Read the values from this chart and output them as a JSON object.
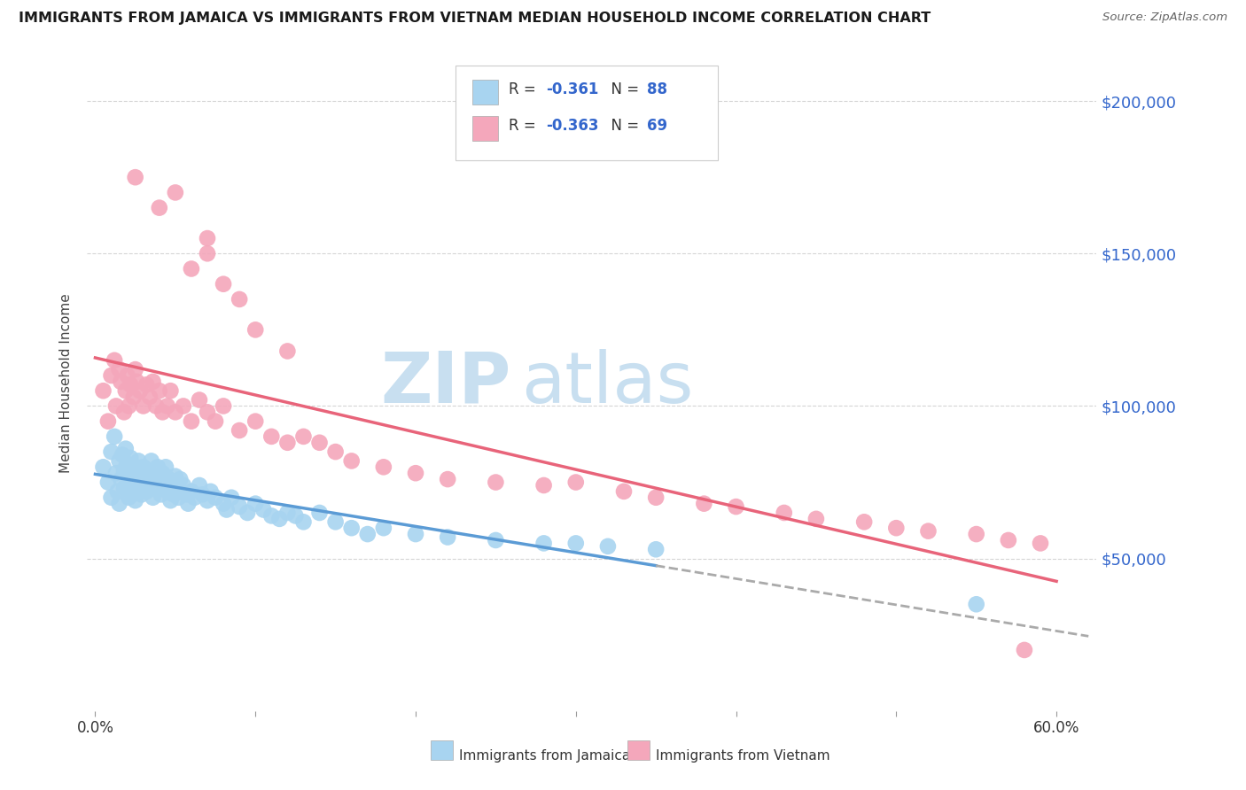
{
  "title": "IMMIGRANTS FROM JAMAICA VS IMMIGRANTS FROM VIETNAM MEDIAN HOUSEHOLD INCOME CORRELATION CHART",
  "source": "Source: ZipAtlas.com",
  "ylabel": "Median Household Income",
  "ytick_labels": [
    "$50,000",
    "$100,000",
    "$150,000",
    "$200,000"
  ],
  "ytick_vals": [
    50000,
    100000,
    150000,
    200000
  ],
  "ylim": [
    0,
    215000
  ],
  "xlim": [
    -0.005,
    0.625
  ],
  "jamaica_color": "#a8d4f0",
  "vietnam_color": "#f4a7bb",
  "jamaica_line_color": "#5b9bd5",
  "vietnam_line_color": "#e8647a",
  "grid_color": "#d5d5d5",
  "watermark_zip_color": "#c8dff0",
  "watermark_atlas_color": "#c8dff0",
  "legend_border_color": "#cccccc",
  "legend_text_color": "#3366cc",
  "jamaica_scatter_x": [
    0.005,
    0.008,
    0.01,
    0.01,
    0.012,
    0.013,
    0.014,
    0.015,
    0.015,
    0.016,
    0.017,
    0.018,
    0.018,
    0.019,
    0.02,
    0.02,
    0.021,
    0.022,
    0.022,
    0.023,
    0.024,
    0.025,
    0.025,
    0.026,
    0.027,
    0.027,
    0.028,
    0.029,
    0.03,
    0.03,
    0.031,
    0.032,
    0.033,
    0.034,
    0.035,
    0.036,
    0.037,
    0.038,
    0.039,
    0.04,
    0.041,
    0.042,
    0.043,
    0.044,
    0.045,
    0.046,
    0.047,
    0.048,
    0.049,
    0.05,
    0.051,
    0.052,
    0.053,
    0.055,
    0.057,
    0.058,
    0.06,
    0.062,
    0.065,
    0.067,
    0.07,
    0.072,
    0.075,
    0.08,
    0.082,
    0.085,
    0.09,
    0.095,
    0.1,
    0.105,
    0.11,
    0.115,
    0.12,
    0.125,
    0.13,
    0.14,
    0.15,
    0.16,
    0.17,
    0.18,
    0.2,
    0.22,
    0.25,
    0.28,
    0.3,
    0.32,
    0.35,
    0.55
  ],
  "jamaica_scatter_y": [
    80000,
    75000,
    85000,
    70000,
    90000,
    78000,
    72000,
    82000,
    68000,
    76000,
    84000,
    73000,
    79000,
    86000,
    74000,
    81000,
    70000,
    77000,
    83000,
    71000,
    75000,
    80000,
    69000,
    76000,
    73000,
    82000,
    78000,
    71000,
    74000,
    80000,
    76000,
    72000,
    79000,
    75000,
    82000,
    70000,
    77000,
    73000,
    80000,
    76000,
    71000,
    78000,
    74000,
    80000,
    72000,
    76000,
    69000,
    74000,
    71000,
    77000,
    73000,
    70000,
    76000,
    74000,
    71000,
    68000,
    72000,
    70000,
    74000,
    71000,
    69000,
    72000,
    70000,
    68000,
    66000,
    70000,
    67000,
    65000,
    68000,
    66000,
    64000,
    63000,
    65000,
    64000,
    62000,
    65000,
    62000,
    60000,
    58000,
    60000,
    58000,
    57000,
    56000,
    55000,
    55000,
    54000,
    53000,
    35000
  ],
  "vietnam_scatter_x": [
    0.005,
    0.008,
    0.01,
    0.012,
    0.013,
    0.015,
    0.016,
    0.018,
    0.019,
    0.02,
    0.021,
    0.022,
    0.024,
    0.025,
    0.026,
    0.028,
    0.03,
    0.032,
    0.034,
    0.036,
    0.038,
    0.04,
    0.042,
    0.045,
    0.047,
    0.05,
    0.055,
    0.06,
    0.065,
    0.07,
    0.075,
    0.08,
    0.09,
    0.1,
    0.11,
    0.12,
    0.13,
    0.14,
    0.15,
    0.16,
    0.18,
    0.2,
    0.22,
    0.25,
    0.28,
    0.3,
    0.33,
    0.35,
    0.38,
    0.4,
    0.43,
    0.45,
    0.48,
    0.5,
    0.52,
    0.55,
    0.57,
    0.59,
    0.04,
    0.05,
    0.07,
    0.06,
    0.025,
    0.08,
    0.07,
    0.09,
    0.1,
    0.12,
    0.58
  ],
  "vietnam_scatter_y": [
    105000,
    95000,
    110000,
    115000,
    100000,
    112000,
    108000,
    98000,
    105000,
    110000,
    100000,
    107000,
    103000,
    112000,
    108000,
    105000,
    100000,
    107000,
    103000,
    108000,
    100000,
    105000,
    98000,
    100000,
    105000,
    98000,
    100000,
    95000,
    102000,
    98000,
    95000,
    100000,
    92000,
    95000,
    90000,
    88000,
    90000,
    88000,
    85000,
    82000,
    80000,
    78000,
    76000,
    75000,
    74000,
    75000,
    72000,
    70000,
    68000,
    67000,
    65000,
    63000,
    62000,
    60000,
    59000,
    58000,
    56000,
    55000,
    165000,
    170000,
    155000,
    145000,
    175000,
    140000,
    150000,
    135000,
    125000,
    118000,
    20000
  ]
}
